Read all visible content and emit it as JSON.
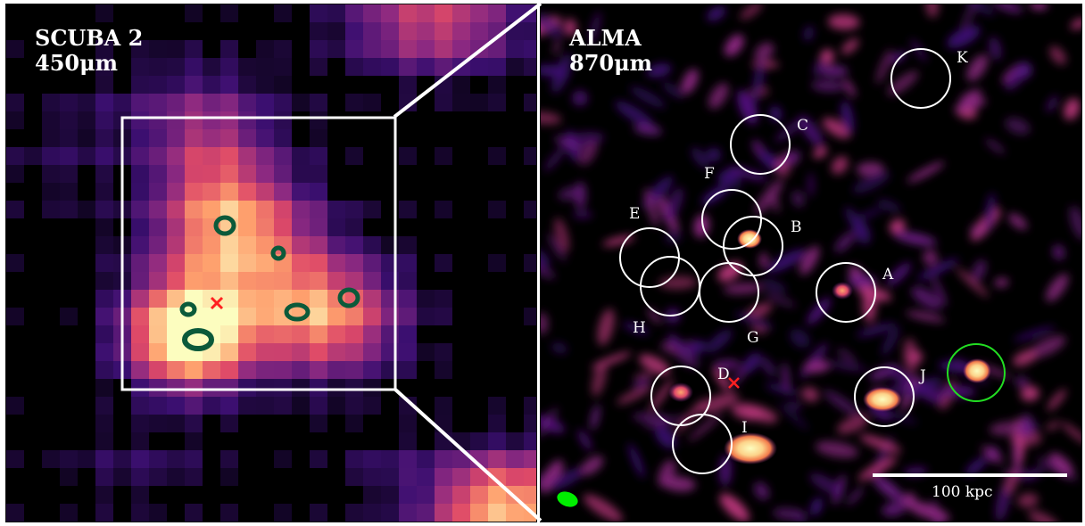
{
  "left_panel": {
    "instrument": "SCUBA 2",
    "wavelength": "450μm"
  },
  "right_panel": {
    "instrument": "ALMA",
    "wavelength": "870μm",
    "scale_bar_label": "100 kpc",
    "sources": [
      {
        "id": "K"
      },
      {
        "id": "C"
      },
      {
        "id": "F"
      },
      {
        "id": "B"
      },
      {
        "id": "E"
      },
      {
        "id": "A"
      },
      {
        "id": "H"
      },
      {
        "id": "G"
      },
      {
        "id": "D"
      },
      {
        "id": "J"
      },
      {
        "id": "I"
      }
    ]
  },
  "colors": {
    "colormap": [
      "#000004",
      "#3b0f70",
      "#8c2981",
      "#de4968",
      "#fe9f6d",
      "#fcfdbf"
    ],
    "circle": "#ffffff",
    "highlight_circle": "#22dd22",
    "beam": "#00ee00",
    "marker": "#ff2020",
    "contour": "#0b5a3a"
  }
}
